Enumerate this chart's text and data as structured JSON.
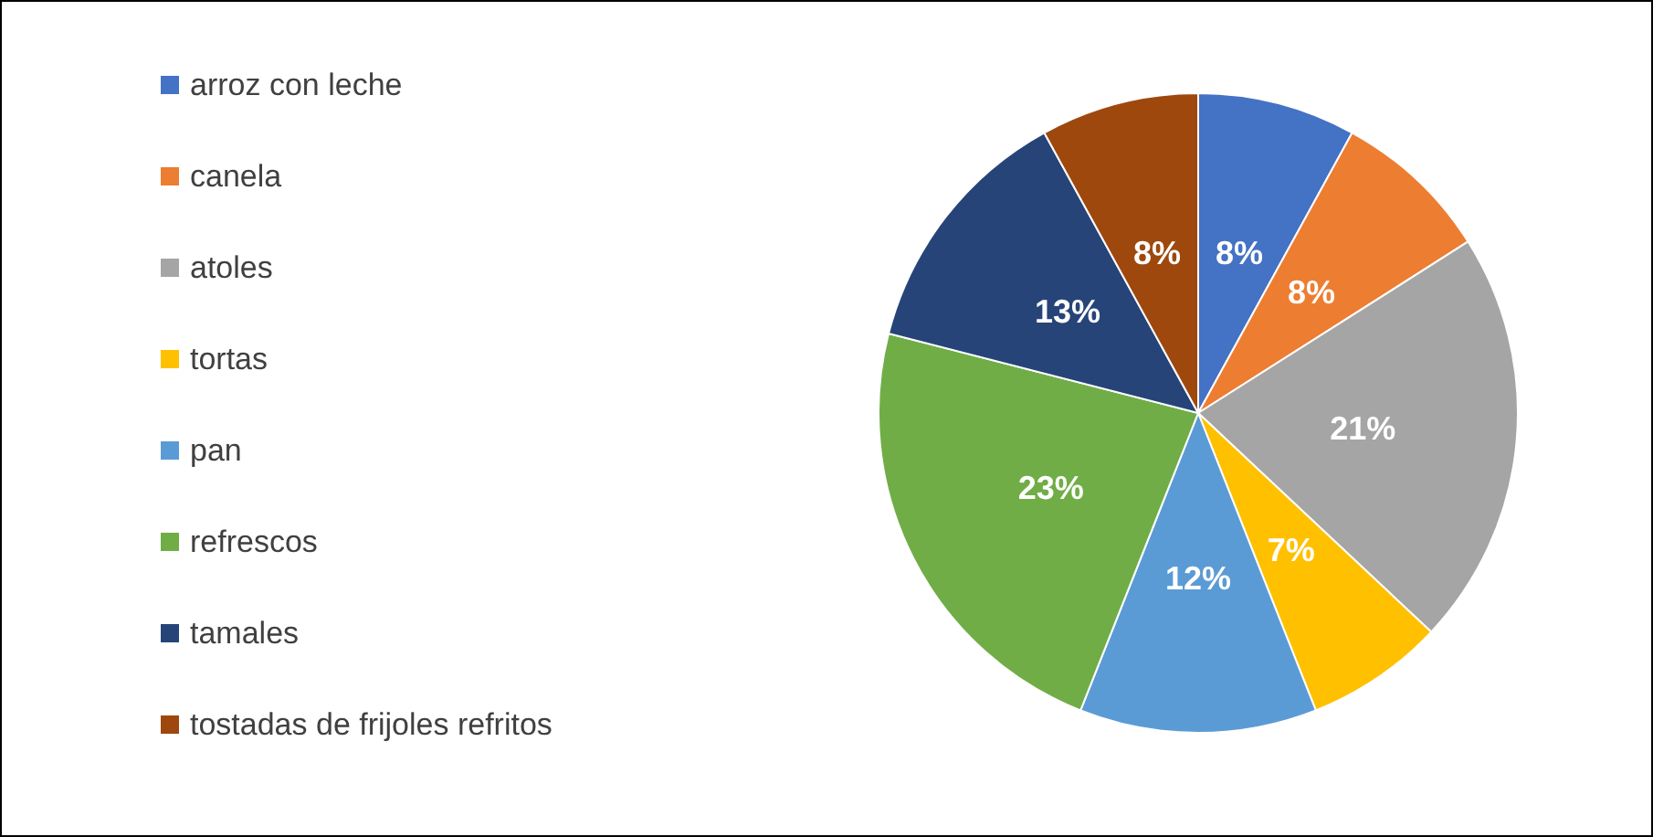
{
  "chart_data": {
    "type": "pie",
    "categories": [
      "arroz con leche",
      "canela",
      "atoles",
      "tortas",
      "pan",
      "refrescos",
      "tamales",
      "tostadas de frijoles refritos"
    ],
    "values": [
      8,
      8,
      21,
      7,
      12,
      23,
      13,
      8
    ],
    "value_labels": [
      "8%",
      "8%",
      "21%",
      "7%",
      "12%",
      "23%",
      "13%",
      "8%"
    ],
    "colors": [
      "#4472c4",
      "#ed7d31",
      "#a5a5a5",
      "#ffc000",
      "#5b9bd5",
      "#70ad47",
      "#264478",
      "#9e480e"
    ],
    "legend": "left"
  }
}
